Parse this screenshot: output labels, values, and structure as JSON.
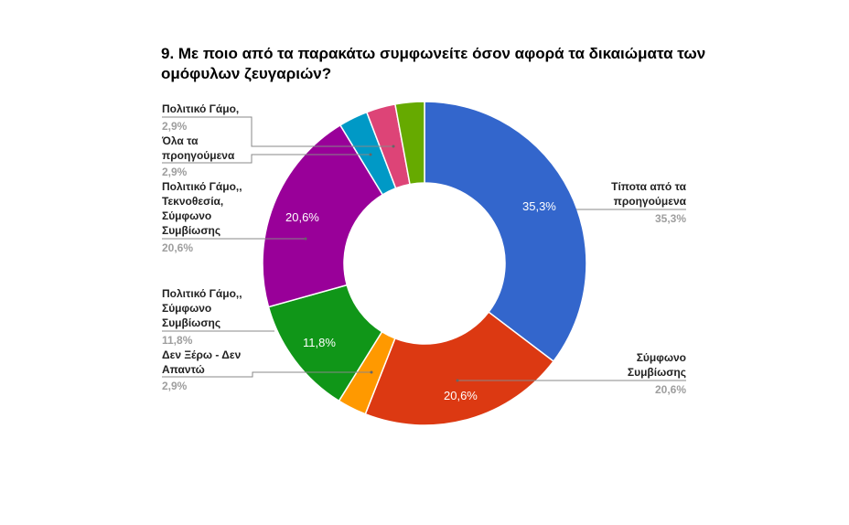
{
  "title": "9. Με ποιο από τα παρακάτω συμφωνείτε όσον αφορά τα δικαιώματα των ομόφυλων ζευγαριών?",
  "chart_data": {
    "type": "pie",
    "donut": true,
    "title": "9. Με ποιο από τα παρακάτω συμφωνείτε όσον αφορά τα δικαιώματα των ομόφυλων ζευγαριών?",
    "categories": [
      "Τίποτα από τα προηγούμενα",
      "Σύμφωνο Συμβίωσης",
      "Δεν Ξέρω - Δεν Απαντώ",
      "Πολιτικό Γάμο,, Σύμφωνο Συμβίωσης",
      "Πολιτικό Γάμο,, Τεκνοθεσία, Σύμφωνο Συμβίωσης",
      "Όλα τα προηγούμενα",
      "Πολιτικό Γάμο,",
      "(unlabeled)"
    ],
    "values": [
      35.3,
      20.6,
      2.9,
      11.8,
      20.6,
      2.9,
      2.9,
      2.9
    ],
    "value_labels": [
      "35,3%",
      "20,6%",
      "2,9%",
      "11,8%",
      "20,6%",
      "2,9%",
      "2,9%",
      "2,9%"
    ],
    "colors": [
      "#3366cc",
      "#dc3912",
      "#ff9900",
      "#109618",
      "#990099",
      "#0099c6",
      "#dd4477",
      "#66aa00"
    ],
    "start_angle": "12 o'clock, clockwise",
    "legend_position": "labeled callouts"
  },
  "labels": {
    "politiko_gamo": {
      "text": "Πολιτικό Γάμο,",
      "pct": "2,9%"
    },
    "ola": {
      "line1": "Όλα τα",
      "line2": "προηγούμενα",
      "pct": "2,9%"
    },
    "tekno": {
      "line1": "Πολιτικό Γάμο,,",
      "line2": "Τεκνοθεσία,",
      "line3": "Σύμφωνο",
      "line4": "Συμβίωσης",
      "pct": "20,6%"
    },
    "gamo_symf": {
      "line1": "Πολιτικό Γάμο,,",
      "line2": "Σύμφωνο",
      "line3": "Συμβίωσης",
      "pct": "11,8%"
    },
    "den_xero": {
      "line1": "Δεν Ξέρω - Δεν",
      "line2": "Απαντώ",
      "pct": "2,9%"
    },
    "tipota": {
      "line1": "Τίποτα από τα",
      "line2": "προηγούμενα",
      "pct": "35,3%"
    },
    "symfono": {
      "line1": "Σύμφωνο",
      "line2": "Συμβίωσης",
      "pct": "20,6%"
    }
  },
  "inside_labels": {
    "blue": "35,3%",
    "red": "20,6%",
    "green": "11,8%",
    "purple": "20,6%"
  }
}
